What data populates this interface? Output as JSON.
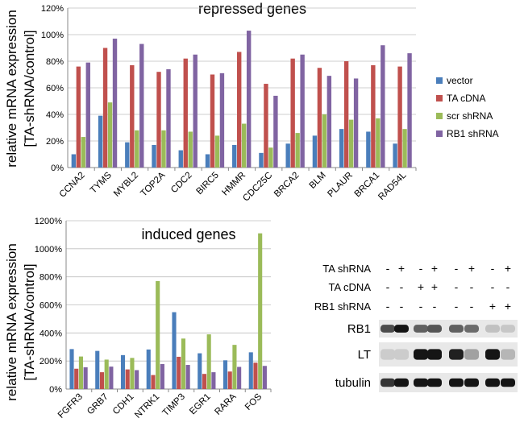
{
  "chart_data": [
    {
      "type": "bar",
      "title": "repressed genes",
      "ylabel_line1": "relative mRNA expression",
      "ylabel_line2": "[TA-shRNA/control]",
      "ylim": [
        0,
        120
      ],
      "yticks": [
        "0%",
        "20%",
        "40%",
        "60%",
        "80%",
        "100%",
        "120%"
      ],
      "categories": [
        "CCNA2",
        "TYMS",
        "MYBL2",
        "TOP2A",
        "CDC2",
        "BIRC5",
        "HMMR",
        "CDC25C",
        "BRCA2",
        "BLM",
        "PLAUR",
        "BRCA1",
        "RAD54L"
      ],
      "series": [
        {
          "name": "vector",
          "color": "#4A7EBB",
          "values": [
            10,
            39,
            19,
            17,
            13,
            10,
            17,
            11,
            18,
            24,
            29,
            27,
            18
          ]
        },
        {
          "name": "TA cDNA",
          "color": "#C0504D",
          "values": [
            76,
            90,
            77,
            72,
            82,
            70,
            87,
            63,
            82,
            75,
            80,
            77,
            76
          ]
        },
        {
          "name": "scr shRNA",
          "color": "#9BBB59",
          "values": [
            23,
            49,
            28,
            28,
            27,
            24,
            33,
            15,
            26,
            40,
            36,
            37,
            29
          ]
        },
        {
          "name": "RB1 shRNA",
          "color": "#8064A2",
          "values": [
            79,
            97,
            93,
            74,
            85,
            71,
            103,
            54,
            85,
            69,
            67,
            92,
            86
          ]
        }
      ],
      "legend": "right"
    },
    {
      "type": "bar",
      "title": "induced genes",
      "ylabel_line1": "relative mRNA expression",
      "ylabel_line2": "[TA-shRNA/control]",
      "ylim": [
        0,
        1200
      ],
      "yticks": [
        "0%",
        "200%",
        "400%",
        "600%",
        "800%",
        "1000%",
        "1200%"
      ],
      "categories": [
        "FGFR3",
        "GRB7",
        "CDH1",
        "NTRK1",
        "TIMP3",
        "EGR1",
        "RARA",
        "FOS"
      ],
      "series": [
        {
          "name": "vector",
          "color": "#4A7EBB",
          "values": [
            285,
            272,
            242,
            282,
            548,
            255,
            205,
            262
          ]
        },
        {
          "name": "TA cDNA",
          "color": "#C0504D",
          "values": [
            145,
            120,
            140,
            100,
            230,
            108,
            125,
            188
          ]
        },
        {
          "name": "scr shRNA",
          "color": "#9BBB59",
          "values": [
            232,
            210,
            222,
            770,
            360,
            390,
            315,
            1110
          ]
        },
        {
          "name": "RB1 shRNA",
          "color": "#8064A2",
          "values": [
            155,
            160,
            135,
            178,
            172,
            120,
            158,
            165
          ]
        }
      ]
    }
  ],
  "blot": {
    "rows": [
      {
        "label": "TA shRNA",
        "signs": [
          "-",
          "+",
          "-",
          "+",
          "-",
          "+",
          "-",
          "+"
        ]
      },
      {
        "label": "TA cDNA",
        "signs": [
          "-",
          "-",
          "+",
          "+",
          "-",
          "-",
          "-",
          "-"
        ]
      },
      {
        "label": "RB1 shRNA",
        "signs": [
          "-",
          "-",
          "-",
          "-",
          "-",
          "-",
          "+",
          "+"
        ]
      }
    ],
    "bands": [
      {
        "label": "RB1",
        "intensity": [
          0.7,
          0.95,
          0.6,
          0.65,
          0.6,
          0.55,
          0.15,
          0.12
        ]
      },
      {
        "label": "LT",
        "intensity": [
          0.1,
          0.1,
          0.95,
          0.95,
          0.9,
          0.3,
          0.95,
          0.2
        ]
      },
      {
        "label": "tubulin",
        "intensity": [
          0.8,
          0.95,
          0.95,
          0.95,
          0.95,
          0.95,
          0.95,
          0.95
        ]
      }
    ]
  }
}
